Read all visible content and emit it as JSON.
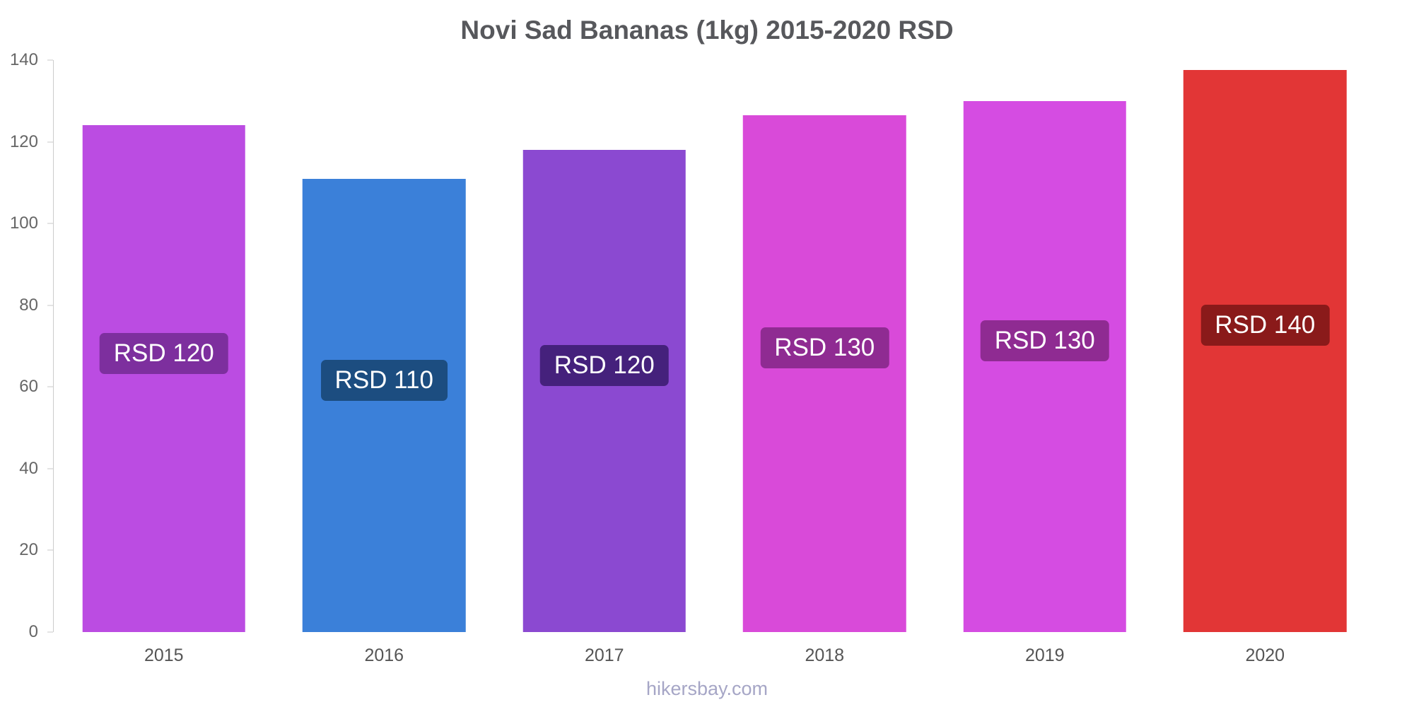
{
  "page": {
    "title": "Novi Sad Bananas (1kg) 2015-2020 RSD",
    "footer": "hikersbay.com"
  },
  "chart_data": {
    "type": "bar",
    "title": "Novi Sad Bananas (1kg) 2015-2020 RSD",
    "categories": [
      "2015",
      "2016",
      "2017",
      "2018",
      "2019",
      "2020"
    ],
    "values": [
      124,
      111,
      118,
      126.5,
      130,
      137.5
    ],
    "bar_labels": [
      "RSD 120",
      "RSD 110",
      "RSD 120",
      "RSD 130",
      "RSD 130",
      "RSD 140"
    ],
    "bar_colors": [
      "#bb4ce2",
      "#3b80d9",
      "#8b49d1",
      "#d94ad9",
      "#d54ce2",
      "#e23636"
    ],
    "label_bg_colors": [
      "#7d2f9e",
      "#1c4d80",
      "#45217c",
      "#8f2b92",
      "#8f2b92",
      "#8a1a1a"
    ],
    "xlabel": "",
    "ylabel": "",
    "ylim": [
      0,
      140
    ],
    "yticks": [
      0,
      20,
      40,
      60,
      80,
      100,
      120,
      140
    ],
    "grid": false,
    "legend": "none",
    "footer": "hikersbay.com"
  }
}
